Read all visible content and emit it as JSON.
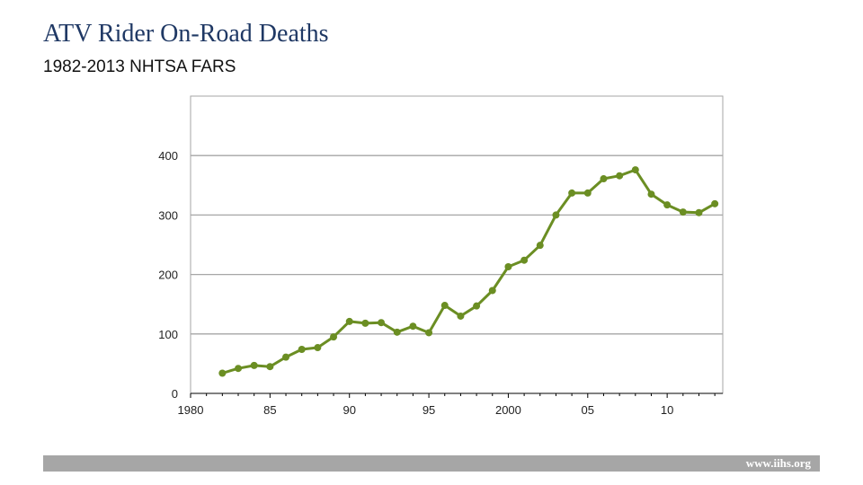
{
  "header": {
    "title": "ATV Rider On-Road Deaths",
    "subtitle": "1982-2013  NHTSA FARS"
  },
  "footer": {
    "url": "www.iihs.org"
  },
  "colors": {
    "line": "#6b8e23",
    "grid": "#a6a6a6",
    "axis": "#000000"
  },
  "chart_data": {
    "type": "line",
    "title": "",
    "xlabel": "",
    "ylabel": "",
    "xlim": [
      1980,
      2013.5
    ],
    "ylim": [
      0,
      500
    ],
    "yticks": [
      0,
      100,
      200,
      300,
      400
    ],
    "ytick_labels": [
      "0",
      "100",
      "200",
      "300",
      "400"
    ],
    "xticks": [
      1980,
      1985,
      1990,
      1995,
      2000,
      2005,
      2010
    ],
    "xtick_labels": [
      "1980",
      "85",
      "90",
      "95",
      "2000",
      "05",
      "10"
    ],
    "grid": true,
    "legend": "none",
    "series": [
      {
        "x": [
          1982,
          1983,
          1984,
          1985,
          1986,
          1987,
          1988,
          1989,
          1990,
          1991,
          1992,
          1993,
          1994,
          1995,
          1996,
          1997,
          1998,
          1999,
          2000,
          2001,
          2002,
          2003,
          2004,
          2005,
          2006,
          2007,
          2008,
          2009,
          2010,
          2011,
          2012,
          2013
        ],
        "values": [
          34,
          42,
          47,
          45,
          61,
          74,
          77,
          95,
          121,
          118,
          119,
          103,
          113,
          102,
          148,
          130,
          147,
          173,
          213,
          224,
          249,
          300,
          337,
          337,
          361,
          366,
          376,
          335,
          317,
          305,
          304,
          319
        ]
      }
    ]
  }
}
